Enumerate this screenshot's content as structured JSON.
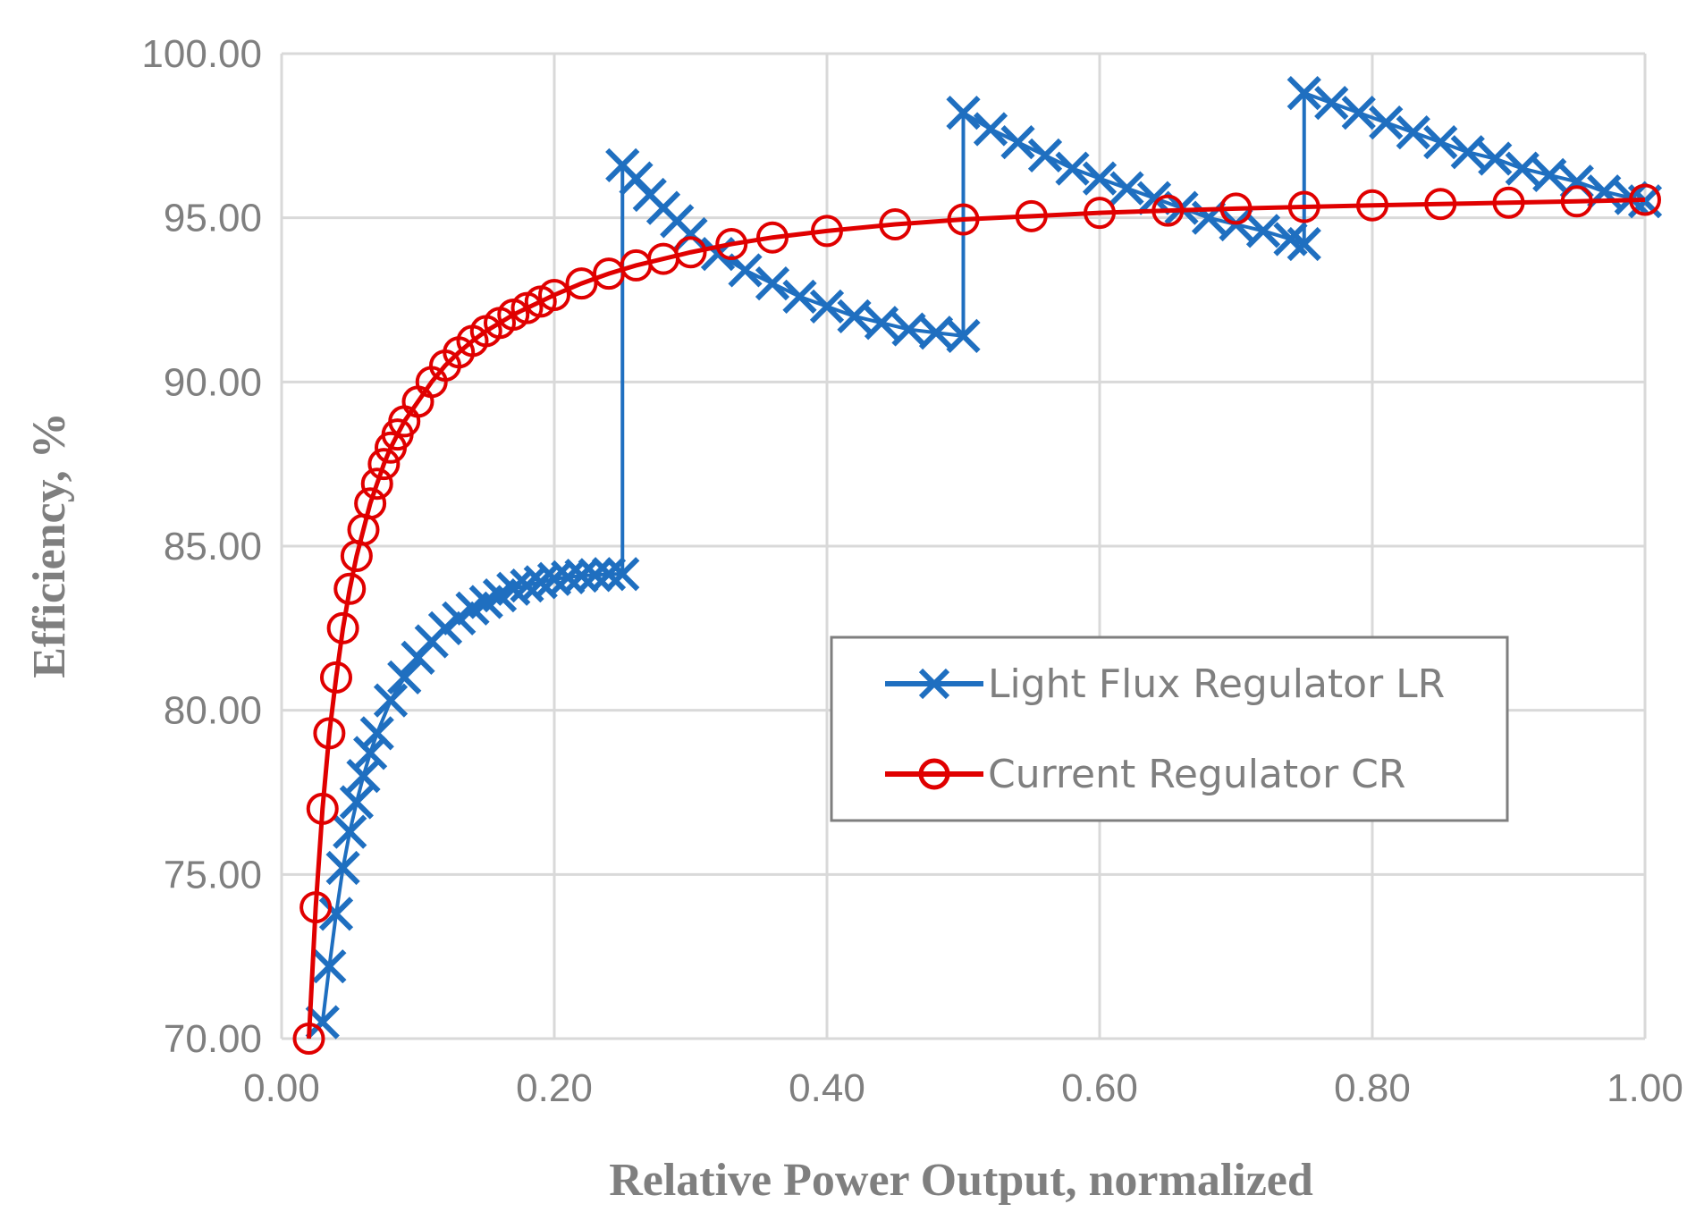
{
  "chart_data": {
    "type": "line",
    "title": "",
    "xlabel": "Relative Power Output, normalized",
    "ylabel": "Efficiency, %",
    "xlim": [
      0,
      1
    ],
    "ylim": [
      70,
      100
    ],
    "grid": true,
    "legend_position": "center-right",
    "x_ticks": [
      0,
      0.2,
      0.4,
      0.6,
      0.8,
      1.0
    ],
    "x_tick_labels": [
      "0.00",
      "0.20",
      "0.40",
      "0.60",
      "0.80",
      "1.00"
    ],
    "y_ticks": [
      70,
      75,
      80,
      85,
      90,
      95,
      100
    ],
    "y_tick_labels": [
      "70.00",
      "75.00",
      "80.00",
      "85.00",
      "90.00",
      "95.00",
      "100.00"
    ],
    "series": [
      {
        "name": "Light Flux Regulator LR",
        "color": "#1f6fc0",
        "marker": "x",
        "x": [
          0.03,
          0.035,
          0.04,
          0.045,
          0.05,
          0.055,
          0.06,
          0.065,
          0.07,
          0.08,
          0.09,
          0.1,
          0.11,
          0.12,
          0.13,
          0.14,
          0.15,
          0.16,
          0.17,
          0.18,
          0.19,
          0.2,
          0.21,
          0.22,
          0.23,
          0.24,
          0.25,
          0.25,
          0.26,
          0.27,
          0.28,
          0.29,
          0.3,
          0.32,
          0.34,
          0.36,
          0.38,
          0.4,
          0.42,
          0.44,
          0.46,
          0.48,
          0.5,
          0.5,
          0.52,
          0.54,
          0.56,
          0.58,
          0.6,
          0.62,
          0.64,
          0.66,
          0.68,
          0.7,
          0.72,
          0.74,
          0.75,
          0.75,
          0.77,
          0.79,
          0.81,
          0.83,
          0.85,
          0.87,
          0.89,
          0.91,
          0.93,
          0.95,
          0.97,
          0.99,
          1.0
        ],
        "y": [
          70.5,
          72.2,
          73.8,
          75.2,
          76.3,
          77.2,
          78.0,
          78.7,
          79.3,
          80.3,
          81.0,
          81.6,
          82.1,
          82.5,
          82.8,
          83.1,
          83.3,
          83.5,
          83.7,
          83.8,
          83.9,
          84.0,
          84.05,
          84.1,
          84.12,
          84.15,
          84.15,
          96.6,
          96.2,
          95.7,
          95.3,
          94.9,
          94.5,
          93.9,
          93.4,
          93.0,
          92.6,
          92.3,
          92.0,
          91.8,
          91.6,
          91.5,
          91.4,
          98.2,
          97.7,
          97.3,
          96.9,
          96.5,
          96.2,
          95.9,
          95.6,
          95.3,
          95.0,
          94.8,
          94.6,
          94.35,
          94.2,
          98.8,
          98.5,
          98.2,
          97.9,
          97.6,
          97.3,
          97.0,
          96.8,
          96.5,
          96.3,
          96.1,
          95.8,
          95.6,
          95.5
        ]
      },
      {
        "name": "Current Regulator CR",
        "color": "#e00000",
        "marker": "o",
        "x": [
          0.02,
          0.025,
          0.03,
          0.035,
          0.04,
          0.045,
          0.05,
          0.055,
          0.06,
          0.065,
          0.07,
          0.075,
          0.08,
          0.085,
          0.09,
          0.1,
          0.11,
          0.12,
          0.13,
          0.14,
          0.15,
          0.16,
          0.17,
          0.18,
          0.19,
          0.2,
          0.22,
          0.24,
          0.26,
          0.28,
          0.3,
          0.33,
          0.36,
          0.4,
          0.45,
          0.5,
          0.55,
          0.6,
          0.65,
          0.7,
          0.75,
          0.8,
          0.85,
          0.9,
          0.95,
          1.0
        ],
        "y": [
          70.0,
          74.0,
          77.0,
          79.3,
          81.0,
          82.5,
          83.7,
          84.7,
          85.5,
          86.3,
          86.9,
          87.5,
          88.0,
          88.4,
          88.8,
          89.4,
          90.0,
          90.5,
          90.9,
          91.25,
          91.55,
          91.8,
          92.05,
          92.25,
          92.45,
          92.65,
          93.0,
          93.3,
          93.55,
          93.75,
          93.95,
          94.2,
          94.4,
          94.6,
          94.8,
          94.95,
          95.05,
          95.15,
          95.22,
          95.28,
          95.33,
          95.38,
          95.42,
          95.46,
          95.5,
          95.55
        ]
      }
    ]
  }
}
